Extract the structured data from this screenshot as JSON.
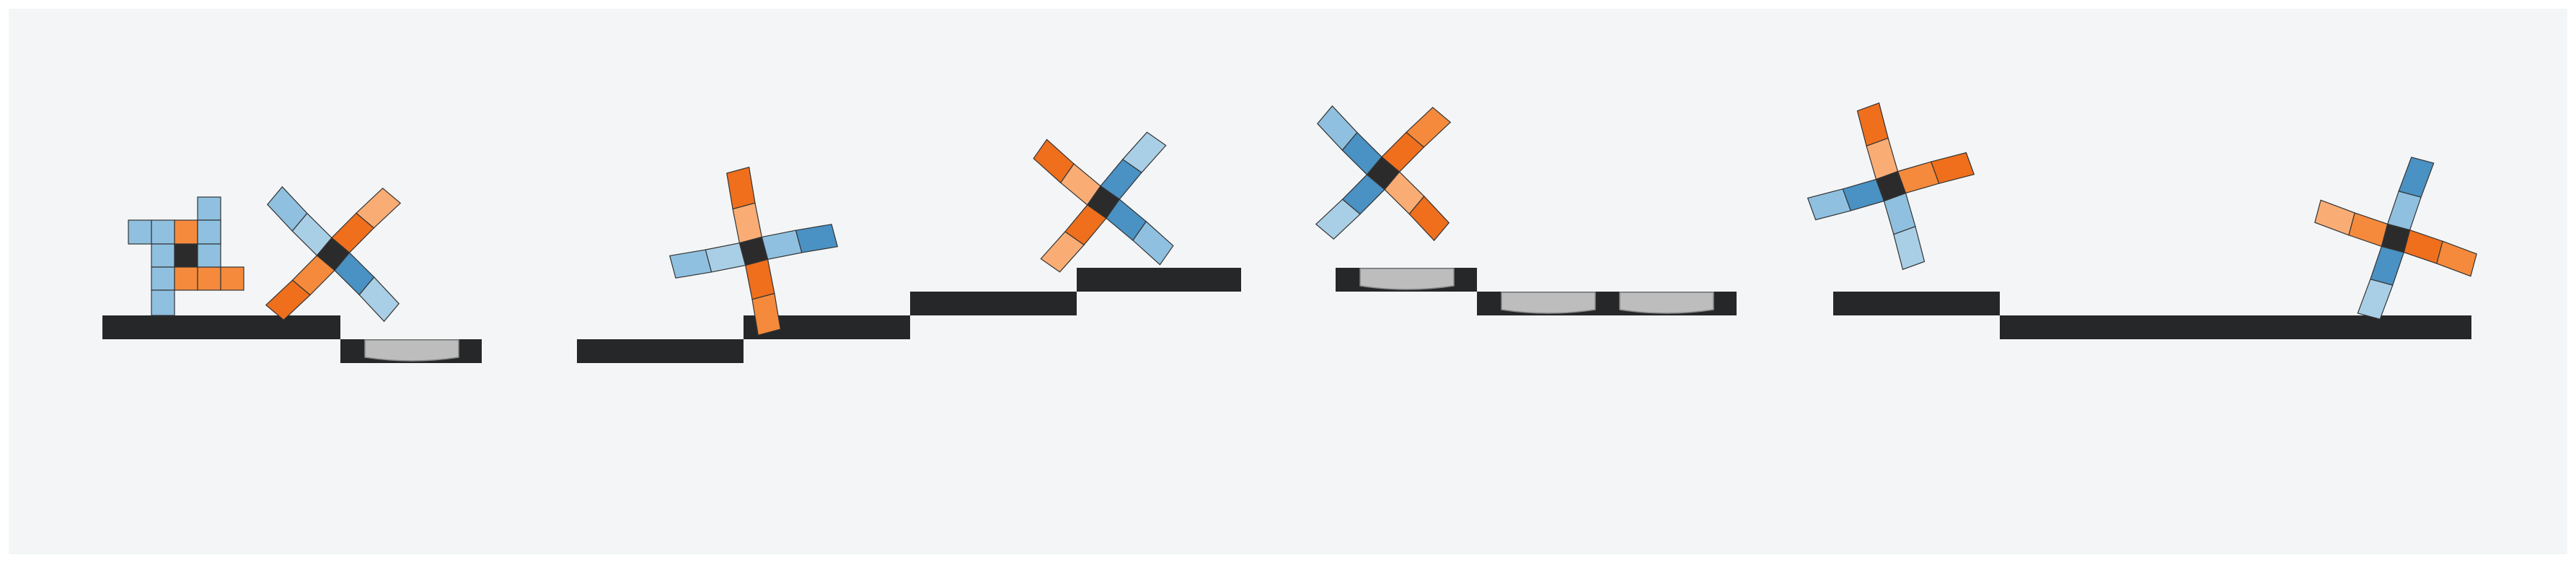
{
  "figure": {
    "description_free": true,
    "colors": {
      "page": "#ffffff",
      "panel": "#f3f5f7",
      "platform": "#252729",
      "pad": "#bdbdbd",
      "outline": "#333333",
      "core": "#2b2b2b",
      "blue": "#4a91c4",
      "blue_light": "#8fc0e0",
      "blue_pale": "#a9cfe6",
      "orange": "#ef6f1d",
      "orange_mid": "#f58a3c",
      "orange_light": "#f9ad74"
    },
    "scenes": [
      {
        "name": "scene-1",
        "robots": 2,
        "platforms": 2,
        "pads": 1
      },
      {
        "name": "scene-2",
        "robots": 2,
        "platforms": 4,
        "pads": 0
      },
      {
        "name": "scene-3",
        "robots": 2,
        "platforms": 3,
        "pads": 3
      },
      {
        "name": "scene-4",
        "robots": 2,
        "platforms": 2,
        "pads": 0
      }
    ]
  }
}
